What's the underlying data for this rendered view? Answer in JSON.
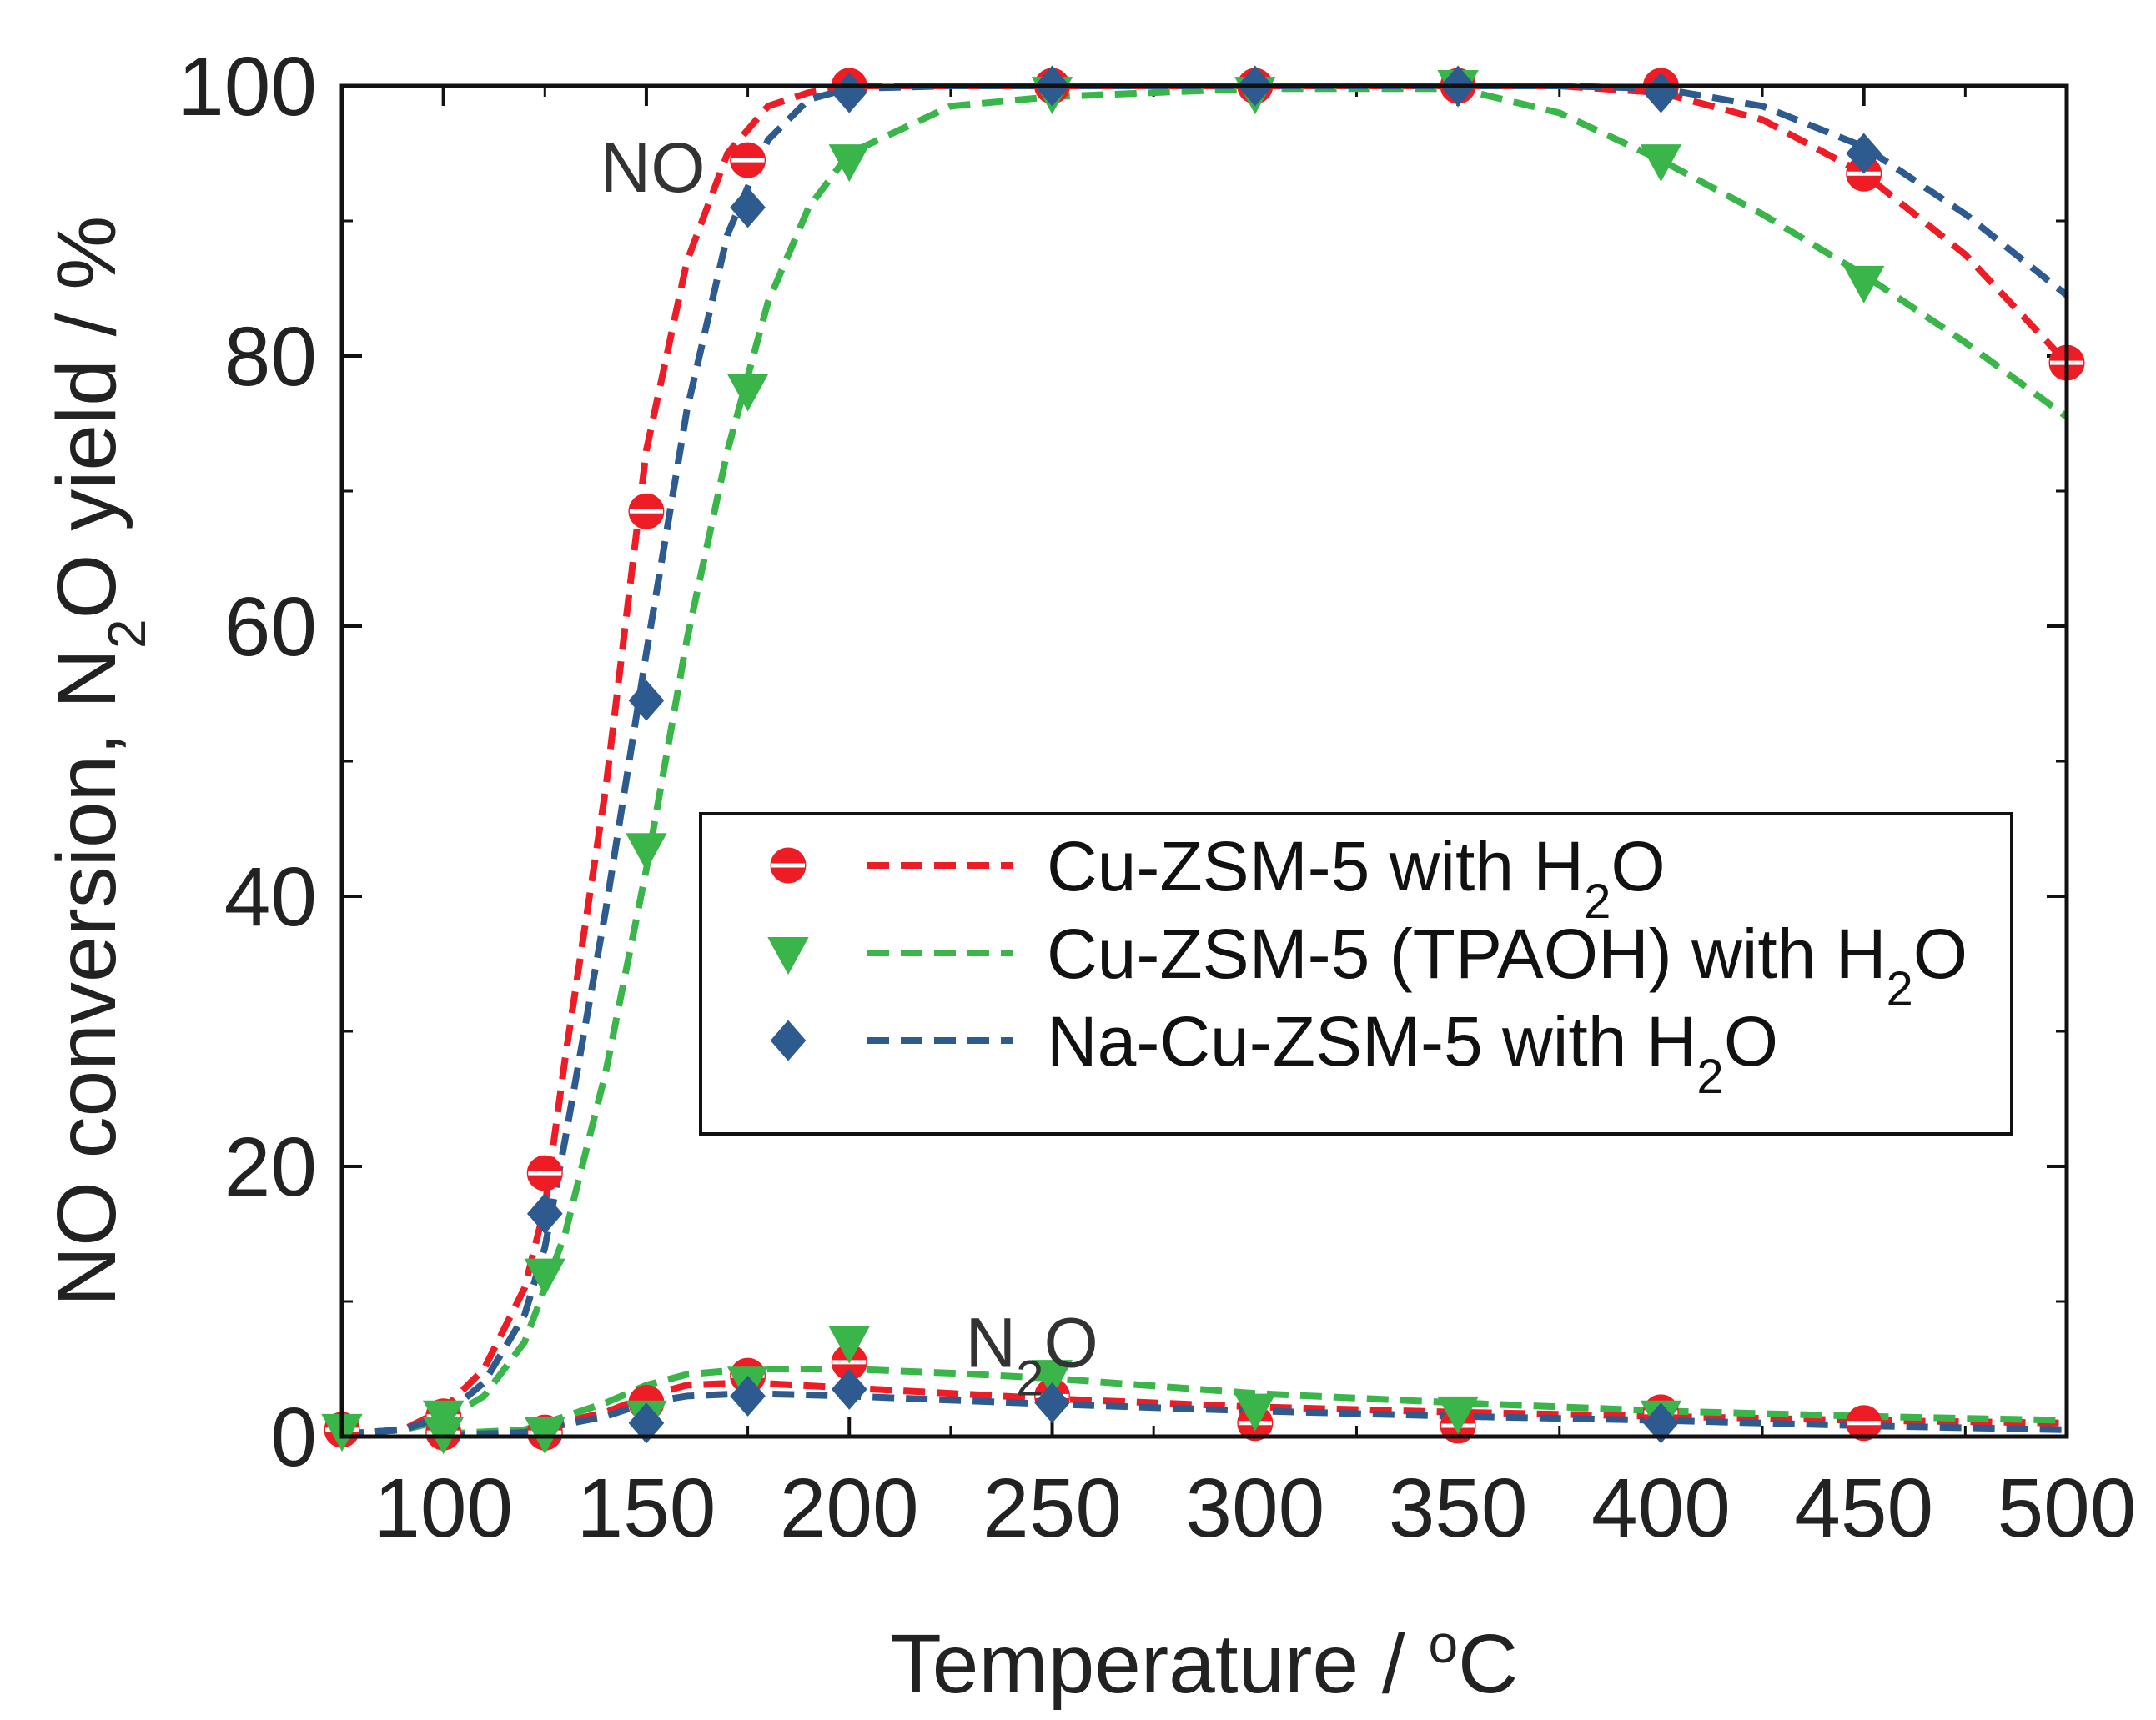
{
  "chart_data": {
    "type": "line",
    "xlabel": "Temperature / °C",
    "xlabel_parts": {
      "main": "Temperature / ",
      "sup": "o",
      "unit": "C"
    },
    "ylabel": "NO conversion, N2O yield / %",
    "ylabel_parts": {
      "pre": "NO conversion, N",
      "sub": "2",
      "post": "O yield / %"
    },
    "xlim": [
      75,
      500
    ],
    "ylim": [
      0,
      100
    ],
    "xticks": [
      100,
      150,
      200,
      250,
      300,
      350,
      400,
      450,
      500
    ],
    "yticks": [
      0,
      20,
      40,
      60,
      80,
      100
    ],
    "annotations": [
      {
        "text": "NO",
        "x": 153,
        "y": 94
      },
      {
        "text": "N",
        "sub": "2",
        "post": "O",
        "x": 243,
        "y": 7
      }
    ],
    "legend": {
      "position": "center-right",
      "entries": [
        {
          "pre": "Cu-ZSM-5 with H",
          "sub": "2",
          "post": "O"
        },
        {
          "pre": "Cu-ZSM-5 (TPAOH) with H",
          "sub": "2",
          "post": "O"
        },
        {
          "pre": "Na-Cu-ZSM-5 with H",
          "sub": "2",
          "post": "O"
        }
      ]
    },
    "series": [
      {
        "name": "Cu-ZSM-5 with H2O",
        "color": "#ee1c24",
        "marker": "circle",
        "NO_conversion": {
          "x": [
            75,
            100,
            125,
            150,
            175,
            200,
            250,
            300,
            350,
            400,
            450,
            500
          ],
          "y": [
            0.5,
            1.5,
            19.5,
            68.5,
            94.5,
            100,
            100,
            100,
            100,
            100,
            93.5,
            79.5
          ],
          "fit_x": [
            75,
            90,
            100,
            110,
            120,
            125,
            130,
            140,
            150,
            160,
            170,
            180,
            190,
            200,
            225,
            250,
            300,
            350,
            375,
            400,
            425,
            450,
            475,
            500
          ],
          "fit_y": [
            0.2,
            0.5,
            2,
            5,
            11,
            17,
            28,
            48,
            73,
            87,
            95,
            98.5,
            99.5,
            100,
            100,
            100,
            100,
            100,
            100,
            99.5,
            97.5,
            93.5,
            87.5,
            79.5
          ]
        },
        "N2O_yield": {
          "x": [
            100,
            125,
            150,
            175,
            200,
            250,
            300,
            350,
            400,
            450
          ],
          "y": [
            0.3,
            0.3,
            2.5,
            4.5,
            5.5,
            3,
            1,
            0.8,
            1.8,
            1
          ],
          "fit_x": [
            100,
            120,
            140,
            150,
            160,
            175,
            200,
            225,
            250,
            300,
            350,
            400,
            450,
            500
          ],
          "fit_y": [
            0.2,
            0.4,
            1.8,
            3,
            3.8,
            4,
            3.6,
            3.2,
            2.8,
            2.2,
            1.8,
            1.5,
            1.2,
            1.0
          ]
        }
      },
      {
        "name": "Cu-ZSM-5 (TPAOH) with H2O",
        "color": "#39b54a",
        "marker": "triangle-down",
        "NO_conversion": {
          "x": [
            75,
            100,
            125,
            150,
            175,
            200,
            250,
            300,
            350,
            400,
            450
          ],
          "y": [
            0.5,
            1.5,
            12,
            43.5,
            77.5,
            94.5,
            99.5,
            99.5,
            100,
            94.5,
            85.5
          ],
          "fit_x": [
            75,
            90,
            100,
            110,
            120,
            130,
            140,
            150,
            160,
            170,
            180,
            190,
            200,
            225,
            250,
            300,
            350,
            375,
            400,
            425,
            450,
            475,
            500
          ],
          "fit_y": [
            0.2,
            0.5,
            1.2,
            3,
            7,
            15,
            27,
            42,
            59,
            73,
            84,
            91,
            95,
            98.5,
            99.2,
            99.8,
            99.8,
            98,
            94.5,
            90.5,
            86,
            81,
            75.5
          ]
        },
        "N2O_yield": {
          "x": [
            100,
            125,
            150,
            175,
            200,
            250,
            300,
            350,
            400
          ],
          "y": [
            0.3,
            0.3,
            1.5,
            4,
            7,
            4.5,
            2,
            1.8,
            1.5
          ],
          "fit_x": [
            100,
            120,
            140,
            150,
            160,
            175,
            200,
            225,
            250,
            300,
            350,
            400,
            450,
            500
          ],
          "fit_y": [
            0.2,
            0.5,
            2.5,
            3.8,
            4.6,
            5,
            5,
            4.7,
            4.3,
            3.2,
            2.5,
            1.9,
            1.5,
            1.2
          ]
        }
      },
      {
        "name": "Na-Cu-ZSM-5 with H2O",
        "color": "#2e5b8f",
        "marker": "diamond",
        "NO_conversion": {
          "x": [
            125,
            150,
            175,
            200,
            250,
            300,
            350,
            400,
            450
          ],
          "y": [
            16.5,
            54.5,
            91,
            99.5,
            100,
            100,
            100,
            99.5,
            95
          ],
          "fit_x": [
            75,
            90,
            100,
            110,
            120,
            125,
            130,
            140,
            150,
            160,
            170,
            180,
            190,
            200,
            225,
            250,
            300,
            350,
            375,
            400,
            425,
            450,
            475,
            500
          ],
          "fit_y": [
            0.2,
            0.5,
            1.5,
            4,
            9,
            14,
            22,
            39,
            58,
            76,
            89,
            96,
            99,
            99.8,
            100,
            100,
            100,
            100,
            100,
            99.8,
            98.5,
            95.5,
            90.5,
            84.5
          ]
        },
        "N2O_yield": {
          "x": [
            150,
            175,
            200,
            250,
            400
          ],
          "y": [
            1,
            3,
            3.5,
            2.5,
            1
          ],
          "fit_x": [
            100,
            120,
            140,
            150,
            160,
            175,
            200,
            225,
            250,
            300,
            350,
            400,
            450,
            500
          ],
          "fit_y": [
            0.1,
            0.3,
            1.5,
            2.5,
            3,
            3.2,
            3,
            2.7,
            2.4,
            1.9,
            1.5,
            1.2,
            0.8,
            0.5
          ]
        }
      }
    ]
  }
}
